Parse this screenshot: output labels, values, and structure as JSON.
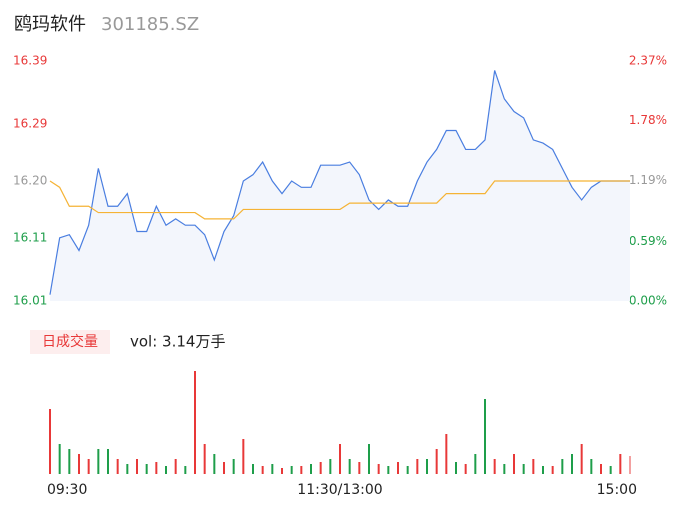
{
  "chart_data": {
    "type": "intraday",
    "title": "鸥玛软件",
    "subtitle": "301185.SZ",
    "xlim": [
      0,
      240
    ],
    "xticks": [
      {
        "value": 0,
        "label": "09:30"
      },
      {
        "value": 120,
        "label": "11:30/13:00"
      },
      {
        "value": 240,
        "label": "15:00"
      }
    ],
    "ylim": [
      16.01,
      16.39
    ],
    "yticks": [
      16.39,
      16.29,
      {
        "value": 16.2,
        "label": "16.20"
      },
      16.11,
      16.01
    ],
    "y2lim": [
      0,
      2.37
    ],
    "y2ticks": [
      {
        "value": 2.37,
        "label": "2.37%"
      },
      {
        "value": 1.78,
        "label": "1.78%"
      },
      {
        "value": 1.19,
        "label": "1.19%"
      },
      {
        "value": 0.59,
        "label": "0.59%"
      },
      {
        "value": 0,
        "label": "0.00%"
      }
    ],
    "x": [
      0,
      4,
      8,
      12,
      16,
      20,
      24,
      28,
      32,
      36,
      40,
      44,
      48,
      52,
      56,
      60,
      64,
      68,
      72,
      76,
      80,
      84,
      88,
      92,
      96,
      100,
      104,
      108,
      112,
      116,
      120,
      124,
      128,
      132,
      136,
      140,
      144,
      148,
      152,
      156,
      160,
      164,
      168,
      172,
      176,
      180,
      184,
      188,
      192,
      196,
      200,
      204,
      208,
      212,
      216,
      220,
      224,
      228,
      232,
      236,
      240
    ],
    "series": [
      {
        "color": "#4a7ee0",
        "values": [
          16.02,
          16.11,
          16.115,
          16.09,
          16.13,
          16.22,
          16.16,
          16.16,
          16.18,
          16.12,
          16.12,
          16.16,
          16.13,
          16.14,
          16.13,
          16.13,
          16.115,
          16.075,
          16.12,
          16.145,
          16.2,
          16.21,
          16.23,
          16.2,
          16.18,
          16.2,
          16.19,
          16.19,
          16.225,
          16.225,
          16.225,
          16.23,
          16.21,
          16.17,
          16.155,
          16.17,
          16.16,
          16.16,
          16.2,
          16.23,
          16.25,
          16.28,
          16.28,
          16.25,
          16.25,
          16.265,
          16.375,
          16.33,
          16.31,
          16.3,
          16.265,
          16.26,
          16.25,
          16.22,
          16.19,
          16.17,
          16.19,
          16.2,
          16.2,
          16.2,
          16.2
        ]
      },
      {
        "color": "#f5b335",
        "values": [
          16.2,
          16.19,
          16.16,
          16.16,
          16.16,
          16.15,
          16.15,
          16.15,
          16.15,
          16.15,
          16.15,
          16.15,
          16.15,
          16.15,
          16.15,
          16.15,
          16.14,
          16.14,
          16.14,
          16.14,
          16.155,
          16.155,
          16.155,
          16.155,
          16.155,
          16.155,
          16.155,
          16.155,
          16.155,
          16.155,
          16.155,
          16.165,
          16.165,
          16.165,
          16.165,
          16.165,
          16.165,
          16.165,
          16.165,
          16.165,
          16.165,
          16.18,
          16.18,
          16.18,
          16.18,
          16.18,
          16.2,
          16.2,
          16.2,
          16.2,
          16.2,
          16.2,
          16.2,
          16.2,
          16.2,
          16.2,
          16.2,
          16.2,
          16.2,
          16.2,
          16.2
        ]
      }
    ],
    "volume": {
      "tab": "日成交量",
      "label": "vol: 3.14万手",
      "values": [
        65,
        30,
        25,
        20,
        15,
        25,
        25,
        15,
        10,
        15,
        10,
        12,
        8,
        15,
        8,
        103,
        30,
        20,
        12,
        15,
        35,
        10,
        8,
        10,
        6,
        8,
        8,
        10,
        12,
        15,
        30,
        15,
        12,
        30,
        10,
        8,
        12,
        8,
        15,
        15,
        25,
        40,
        12,
        10,
        20,
        75,
        15,
        10,
        20,
        10,
        15,
        8,
        8,
        15,
        20,
        30,
        15,
        10,
        8,
        20,
        18
      ],
      "colors": [
        "#e83838",
        "#1e9e4a",
        "#1e9e4a",
        "#e83838",
        "#e83838",
        "#1e9e4a",
        "#1e9e4a",
        "#e83838",
        "#1e9e4a",
        "#e83838",
        "#1e9e4a",
        "#e83838",
        "#1e9e4a",
        "#e83838",
        "#1e9e4a",
        "#e83838",
        "#e83838",
        "#1e9e4a",
        "#e83838",
        "#1e9e4a",
        "#e83838",
        "#1e9e4a",
        "#e83838",
        "#1e9e4a",
        "#e83838",
        "#1e9e4a",
        "#e83838",
        "#1e9e4a",
        "#e83838",
        "#1e9e4a",
        "#e83838",
        "#1e9e4a",
        "#e83838",
        "#1e9e4a",
        "#e83838",
        "#1e9e4a",
        "#e83838",
        "#1e9e4a",
        "#e83838",
        "#1e9e4a",
        "#e83838",
        "#e83838",
        "#1e9e4a",
        "#e83838",
        "#1e9e4a",
        "#1e9e4a",
        "#e83838",
        "#1e9e4a",
        "#e83838",
        "#1e9e4a",
        "#e83838",
        "#1e9e4a",
        "#e83838",
        "#1e9e4a",
        "#1e9e4a",
        "#e83838",
        "#1e9e4a",
        "#e83838",
        "#1e9e4a",
        "#e83838",
        "#f3a0a0"
      ]
    }
  }
}
